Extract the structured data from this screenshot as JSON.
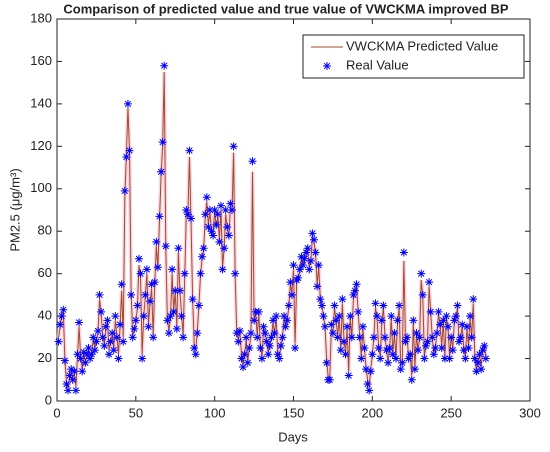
{
  "chart_data": {
    "type": "line",
    "title": "Comparison of predicted value and true value of VWCKMA improved BP",
    "xlabel": "Days",
    "ylabel": "PM2.5 (μg/m³)",
    "xlim": [
      0,
      300
    ],
    "xticks": [
      0,
      50,
      100,
      150,
      200,
      250,
      300
    ],
    "ylim": [
      0,
      180
    ],
    "yticks": [
      0,
      20,
      40,
      60,
      80,
      100,
      120,
      140,
      160,
      180
    ],
    "legend": "northeast",
    "x": [
      1,
      2,
      3,
      4,
      5,
      6,
      7,
      8,
      9,
      10,
      11,
      12,
      13,
      14,
      15,
      16,
      17,
      18,
      19,
      20,
      21,
      22,
      23,
      24,
      25,
      26,
      27,
      28,
      29,
      30,
      31,
      32,
      33,
      34,
      35,
      36,
      37,
      38,
      39,
      40,
      41,
      42,
      43,
      44,
      45,
      46,
      47,
      48,
      49,
      50,
      51,
      52,
      53,
      54,
      55,
      56,
      57,
      58,
      59,
      60,
      61,
      62,
      63,
      64,
      65,
      66,
      67,
      68,
      69,
      70,
      71,
      72,
      73,
      74,
      75,
      76,
      77,
      78,
      79,
      80,
      81,
      82,
      83,
      84,
      85,
      86,
      87,
      88,
      89,
      90,
      91,
      92,
      93,
      94,
      95,
      96,
      97,
      98,
      99,
      100,
      101,
      102,
      103,
      104,
      105,
      106,
      107,
      108,
      109,
      110,
      111,
      112,
      113,
      114,
      115,
      116,
      117,
      118,
      119,
      120,
      121,
      122,
      123,
      124,
      125,
      126,
      127,
      128,
      129,
      130,
      131,
      132,
      133,
      134,
      135,
      136,
      137,
      138,
      139,
      140,
      141,
      142,
      143,
      144,
      145,
      146,
      147,
      148,
      149,
      150,
      151,
      152,
      153,
      154,
      155,
      156,
      157,
      158,
      159,
      160,
      161,
      162,
      163,
      164,
      165,
      166,
      167,
      168,
      169,
      170,
      171,
      172,
      173,
      174,
      175,
      176,
      177,
      178,
      179,
      180,
      181,
      182,
      183,
      184,
      185,
      186,
      187,
      188,
      189,
      190,
      191,
      192,
      193,
      194,
      195,
      196,
      197,
      198,
      199,
      200,
      201,
      202,
      203,
      204,
      205,
      206,
      207,
      208,
      209,
      210,
      211,
      212,
      213,
      214,
      215,
      216,
      217,
      218,
      219,
      220,
      221,
      222,
      223,
      224,
      225,
      226,
      227,
      228,
      229,
      230,
      231,
      232,
      233,
      234,
      235,
      236,
      237,
      238,
      239,
      240,
      241,
      242,
      243,
      244,
      245,
      246,
      247,
      248,
      249,
      250,
      251,
      252,
      253,
      254,
      255,
      256,
      257,
      258,
      259,
      260,
      261,
      262,
      263,
      264,
      265,
      266,
      267,
      268,
      269,
      270,
      271,
      272
    ],
    "series": [
      {
        "name": "VWCKMA Predicted Value",
        "color": "#a5482f",
        "marker": "line",
        "values": [
          30,
          35,
          41,
          42,
          20,
          9,
          6,
          11,
          14,
          11,
          13,
          7,
          21,
          35,
          21,
          15,
          22,
          19,
          21,
          24,
          21,
          23,
          29,
          25,
          28,
          32,
          48,
          41,
          31,
          27,
          34,
          37,
          24,
          28,
          31,
          25,
          38,
          31,
          22,
          35,
          52,
          30,
          95,
          116,
          138,
          117,
          52,
          31,
          33,
          37,
          44,
          64,
          58,
          22,
          40,
          49,
          60,
          36,
          46,
          53,
          31,
          55,
          73,
          63,
          85,
          106,
          120,
          155,
          72,
          39,
          33,
          40,
          60,
          43,
          51,
          35,
          70,
          51,
          41,
          31,
          58,
          88,
          87,
          115,
          85,
          49,
          27,
          24,
          33,
          45,
          59,
          67,
          71,
          86,
          94,
          83,
          89,
          80,
          79,
          89,
          82,
          87,
          76,
          90,
          63,
          72,
          88,
          81,
          78,
          91,
          89,
          117,
          59,
          33,
          29,
          33,
          22,
          17,
          22,
          29,
          19,
          25,
          31,
          108,
          39,
          41,
          31,
          41,
          26,
          21,
          34,
          32,
          28,
          23,
          26,
          30,
          37,
          32,
          39,
          23,
          21,
          26,
          30,
          39,
          35,
          38,
          44,
          55,
          51,
          62,
          27,
          56,
          58,
          61,
          67,
          64,
          67,
          69,
          71,
          63,
          66,
          77,
          75,
          69,
          55,
          63,
          48,
          45,
          40,
          35,
          20,
          11,
          11,
          34,
          32,
          44,
          38,
          31,
          39,
          25,
          46,
          29,
          23,
          34,
          14,
          39,
          30,
          48,
          51,
          54,
          42,
          31,
          21,
          34,
          25,
          16,
          10,
          7,
          15,
          22,
          30,
          44,
          39,
          26,
          21,
          37,
          44,
          31,
          24,
          19,
          25,
          39,
          23,
          31,
          21,
          37,
          44,
          17,
          19,
          66,
          29,
          30,
          21,
          22,
          12,
          37,
          16,
          31,
          24,
          30,
          57,
          49,
          21,
          26,
          28,
          54,
          42,
          30,
          23,
          25,
          32,
          41,
          36,
          26,
          37,
          21,
          39,
          35,
          21,
          30,
          25,
          37,
          39,
          44,
          28,
          30,
          35,
          25,
          21,
          34,
          26,
          39,
          30,
          46,
          21,
          15,
          18,
          22,
          16,
          24,
          26,
          21
        ]
      },
      {
        "name": "Real Value",
        "color": "#0000ff",
        "marker": "star",
        "values": [
          28,
          36,
          40,
          43,
          19,
          8,
          5,
          12,
          15,
          10,
          14,
          5,
          22,
          37,
          20,
          14,
          23,
          18,
          22,
          25,
          20,
          22,
          30,
          24,
          28,
          33,
          50,
          42,
          30,
          26,
          35,
          38,
          22,
          28,
          32,
          24,
          40,
          30,
          20,
          36,
          55,
          28,
          99,
          115,
          140,
          118,
          50,
          30,
          34,
          38,
          45,
          67,
          60,
          20,
          40,
          50,
          62,
          35,
          47,
          55,
          30,
          56,
          75,
          63,
          87,
          108,
          122,
          158,
          73,
          38,
          32,
          40,
          62,
          42,
          52,
          34,
          72,
          52,
          40,
          30,
          60,
          90,
          88,
          118,
          86,
          48,
          25,
          22,
          32,
          45,
          60,
          68,
          72,
          88,
          96,
          82,
          90,
          80,
          78,
          90,
          83,
          88,
          75,
          92,
          62,
          72,
          90,
          82,
          78,
          93,
          90,
          120,
          60,
          32,
          28,
          33,
          20,
          16,
          22,
          30,
          18,
          25,
          32,
          113,
          38,
          42,
          30,
          42,
          25,
          20,
          35,
          32,
          28,
          22,
          26,
          30,
          38,
          32,
          40,
          22,
          20,
          26,
          30,
          40,
          35,
          38,
          45,
          56,
          50,
          64,
          25,
          57,
          58,
          62,
          68,
          64,
          67,
          70,
          72,
          62,
          66,
          79,
          76,
          70,
          54,
          64,
          48,
          45,
          40,
          35,
          18,
          10,
          10,
          36,
          32,
          45,
          38,
          30,
          40,
          24,
          48,
          28,
          22,
          35,
          12,
          40,
          30,
          50,
          52,
          55,
          42,
          30,
          20,
          35,
          25,
          15,
          8,
          5,
          14,
          22,
          30,
          46,
          40,
          25,
          20,
          38,
          45,
          30,
          24,
          18,
          25,
          40,
          22,
          32,
          20,
          38,
          45,
          15,
          18,
          70,
          28,
          30,
          20,
          22,
          10,
          38,
          15,
          32,
          24,
          30,
          60,
          50,
          20,
          26,
          28,
          56,
          42,
          30,
          22,
          25,
          32,
          42,
          36,
          25,
          38,
          20,
          40,
          35,
          20,
          30,
          24,
          38,
          40,
          45,
          28,
          30,
          36,
          24,
          20,
          35,
          25,
          40,
          30,
          48,
          20,
          14,
          18,
          22,
          15,
          24,
          26,
          20
        ]
      }
    ]
  }
}
